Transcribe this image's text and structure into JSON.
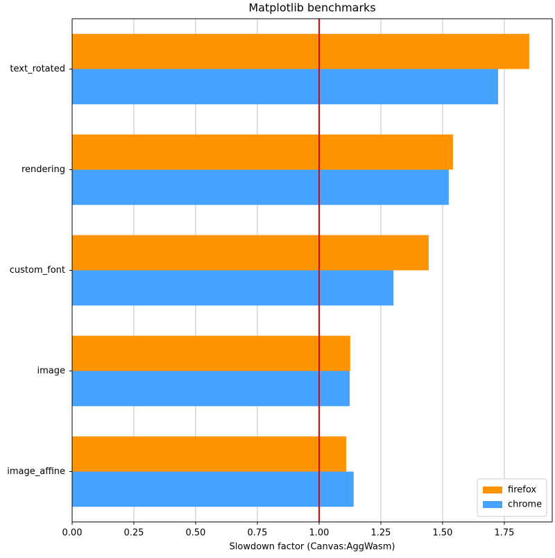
{
  "chart_data": {
    "type": "barh",
    "title": "Matplotlib benchmarks",
    "x_label": "Slowdown factor (Canvas:AggWasm)",
    "categories": [
      "text_rotated",
      "rendering",
      "custom_font",
      "image",
      "image_affine"
    ],
    "series": [
      {
        "name": "firefox",
        "color": "#ff9400",
        "values": [
          1.851,
          1.542,
          1.444,
          1.126,
          1.11
        ]
      },
      {
        "name": "chrome",
        "color": "#45a2ff",
        "values": [
          1.725,
          1.525,
          1.301,
          1.124,
          1.14
        ]
      }
    ],
    "xlim": [
      0,
      1.944
    ],
    "xticks": [
      {
        "value": 0,
        "label": "0.00"
      },
      {
        "value": 0.25,
        "label": "0.25"
      },
      {
        "value": 0.5,
        "label": "0.50"
      },
      {
        "value": 0.75,
        "label": "0.75"
      },
      {
        "value": 1,
        "label": "1.00"
      },
      {
        "value": 1.25,
        "label": "1.25"
      },
      {
        "value": 1.5,
        "label": "1.50"
      },
      {
        "value": 1.75,
        "label": "1.75"
      }
    ],
    "grid": true,
    "reference_line": {
      "value": 1,
      "color": "#e00000"
    },
    "legend": "lower right"
  }
}
